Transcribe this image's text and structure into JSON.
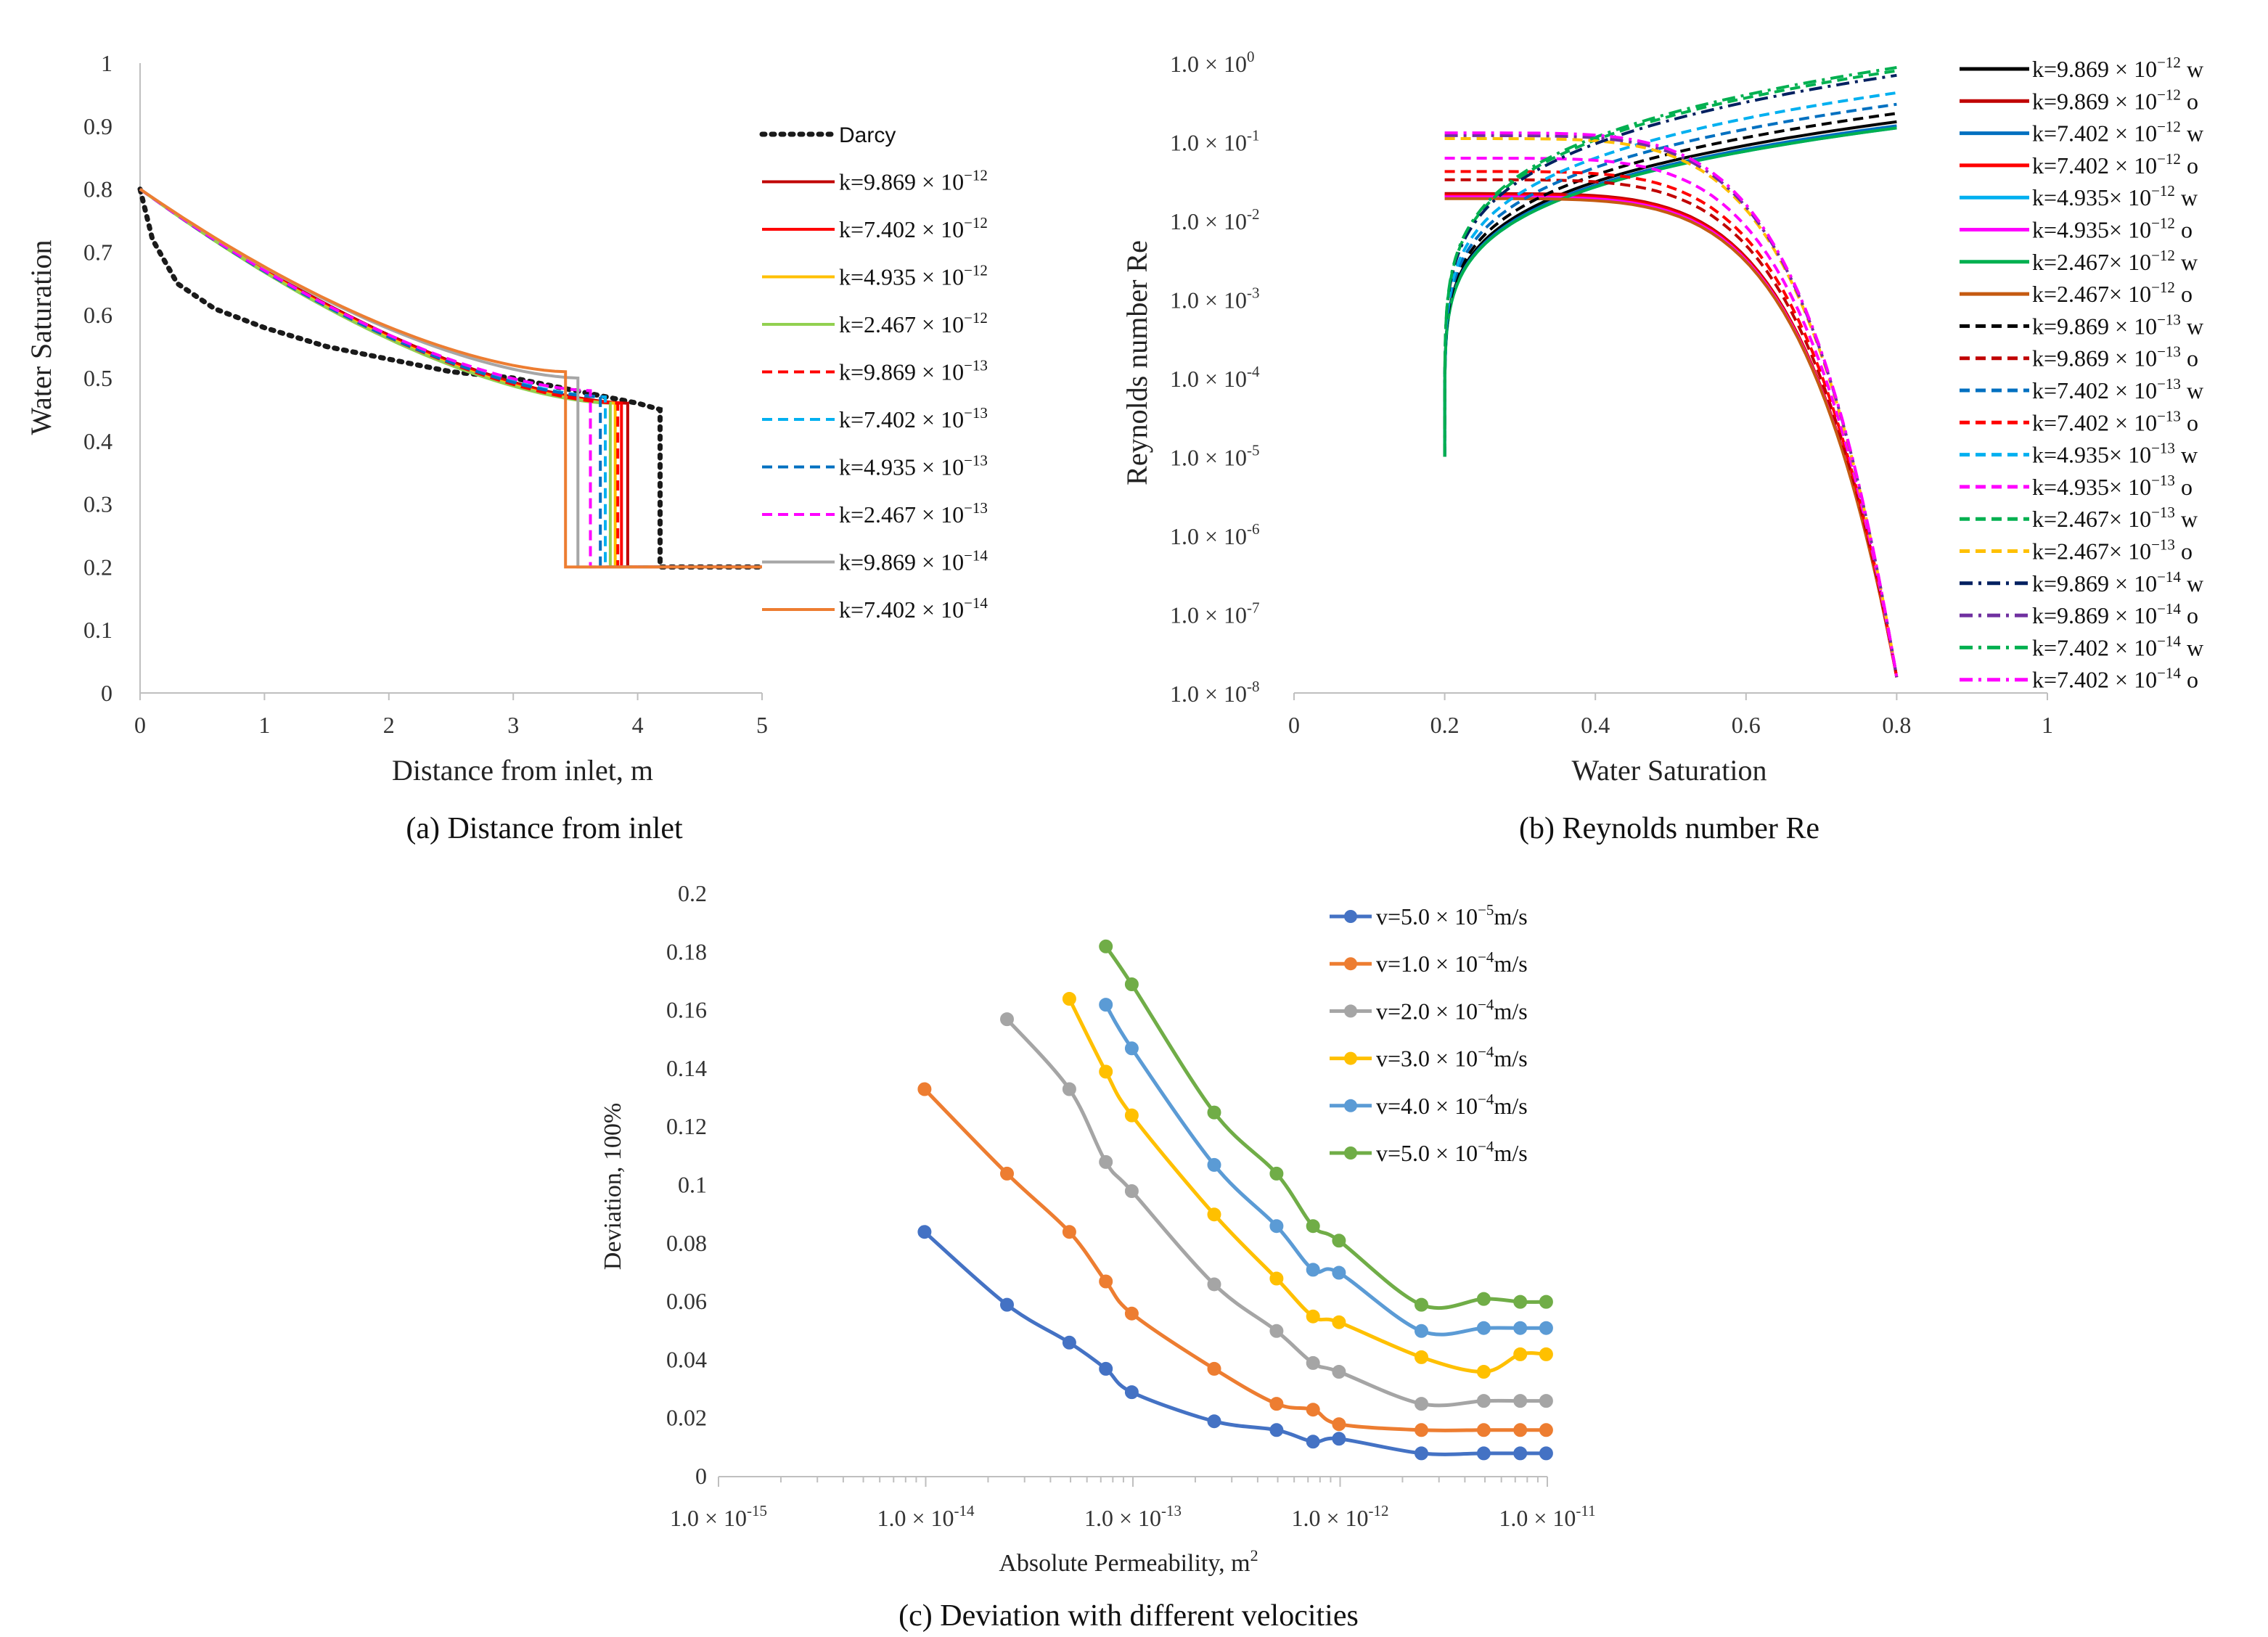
{
  "chart_data": [
    {
      "type": "line",
      "caption": "(a) Distance from inlet",
      "xlabel": "Distance from inlet, m",
      "ylabel": "Water Saturation",
      "xlim": [
        0,
        5
      ],
      "ylim": [
        0,
        1
      ],
      "xticks": [
        "0",
        "1",
        "2",
        "3",
        "4",
        "5"
      ],
      "yticks": [
        "0",
        "0.1",
        "0.2",
        "0.3",
        "0.4",
        "0.5",
        "0.6",
        "0.7",
        "0.8",
        "0.9",
        "1"
      ],
      "grid": false,
      "legend_position": "right",
      "series": [
        {
          "name": "Darcy",
          "label": {
            "pre": "Darcy",
            "sup": ""
          },
          "color": "#1a1a1a",
          "dash": "dotted",
          "front": 4.18,
          "sw_front": 0.45,
          "x": [
            0,
            0.1,
            0.3,
            0.6,
            1.0,
            1.5,
            2.0,
            2.5,
            3.0,
            3.5,
            4.0,
            4.18,
            4.18,
            5.0
          ],
          "y": [
            0.8,
            0.72,
            0.65,
            0.61,
            0.58,
            0.55,
            0.53,
            0.51,
            0.5,
            0.48,
            0.46,
            0.45,
            0.2,
            0.2
          ]
        },
        {
          "name": "k=9.869×10⁻¹²",
          "label": {
            "pre": "k=9.869 × 10",
            "sup": "−12"
          },
          "color": "#c00000",
          "dash": "solid",
          "front": 3.92,
          "sw_front": 0.46
        },
        {
          "name": "k=7.402×10⁻¹²",
          "label": {
            "pre": "k=7.402 × 10",
            "sup": "−12"
          },
          "color": "#ff0000",
          "dash": "solid",
          "front": 3.87,
          "sw_front": 0.46
        },
        {
          "name": "k=4.935×10⁻¹²",
          "label": {
            "pre": "k=4.935 × 10",
            "sup": "−12"
          },
          "color": "#ffc000",
          "dash": "solid",
          "front": 3.82,
          "sw_front": 0.46
        },
        {
          "name": "k=2.467×10⁻¹²",
          "label": {
            "pre": "k=2.467 × 10",
            "sup": "−12"
          },
          "color": "#92d050",
          "dash": "solid",
          "front": 3.78,
          "sw_front": 0.46
        },
        {
          "name": "k=9.869×10⁻¹³",
          "label": {
            "pre": "k=9.869 × 10",
            "sup": "−13"
          },
          "color": "#ff0000",
          "dash": "dashed",
          "front": 3.84,
          "sw_front": 0.46
        },
        {
          "name": "k=7.402×10⁻¹³",
          "label": {
            "pre": "k=7.402 × 10",
            "sup": "−13"
          },
          "color": "#00b0f0",
          "dash": "dashed",
          "front": 3.74,
          "sw_front": 0.47
        },
        {
          "name": "k=4.935×10⁻¹³",
          "label": {
            "pre": "k=4.935 × 10",
            "sup": "−13"
          },
          "color": "#0070c0",
          "dash": "dashed",
          "front": 3.7,
          "sw_front": 0.47
        },
        {
          "name": "k=2.467×10⁻¹³",
          "label": {
            "pre": "k=2.467 × 10",
            "sup": "−13"
          },
          "color": "#ff00ff",
          "dash": "dashed",
          "front": 3.62,
          "sw_front": 0.48
        },
        {
          "name": "k=9.869×10⁻¹⁴",
          "label": {
            "pre": "k=9.869 × 10",
            "sup": "−14"
          },
          "color": "#a6a6a6",
          "dash": "solid",
          "front": 3.52,
          "sw_front": 0.5
        },
        {
          "name": "k=7.402×10⁻¹⁴",
          "label": {
            "pre": "k=7.402 × 10",
            "sup": "−14"
          },
          "color": "#ed7d31",
          "dash": "solid",
          "front": 3.42,
          "sw_front": 0.51
        }
      ]
    },
    {
      "type": "line",
      "caption": "(b) Reynolds number Re",
      "xlabel": "Water Saturation",
      "ylabel": "Reynolds number Re",
      "xlim": [
        0,
        1
      ],
      "ylim_log10": [
        -8,
        0
      ],
      "yscale": "log",
      "xticks": [
        "0",
        "0.2",
        "0.4",
        "0.6",
        "0.8",
        "1"
      ],
      "yticks": [
        {
          "exp": 0,
          "pre": "1.0 × 10",
          "sup": "0"
        },
        {
          "exp": -1,
          "pre": "1.0 × 10",
          "sup": "-1"
        },
        {
          "exp": -2,
          "pre": "1.0 × 10",
          "sup": "-2"
        },
        {
          "exp": -3,
          "pre": "1.0 × 10",
          "sup": "-3"
        },
        {
          "exp": -4,
          "pre": "1.0 × 10",
          "sup": "-4"
        },
        {
          "exp": -5,
          "pre": "1.0 × 10",
          "sup": "-5"
        },
        {
          "exp": -6,
          "pre": "1.0 × 10",
          "sup": "-6"
        },
        {
          "exp": -7,
          "pre": "1.0 × 10",
          "sup": "-7"
        },
        {
          "exp": -8,
          "pre": "1.0 × 10",
          "sup": "-8"
        }
      ],
      "grid": false,
      "legend_position": "right",
      "series": [
        {
          "name": "k=9.869×10⁻¹² w",
          "label": {
            "pre": "k=9.869 × 10",
            "sup": "−12",
            "post": " w"
          },
          "color": "#000000",
          "dash": "solid",
          "phase": "w",
          "re_max": 0.18
        },
        {
          "name": "k=9.869×10⁻¹² o",
          "label": {
            "pre": "k=9.869 × 10",
            "sup": "−12",
            "post": " o"
          },
          "color": "#c00000",
          "dash": "solid",
          "phase": "o",
          "re_max": 0.022
        },
        {
          "name": "k=7.402×10⁻¹² w",
          "label": {
            "pre": "k=7.402 × 10",
            "sup": "−12",
            "post": " w"
          },
          "color": "#0070c0",
          "dash": "solid",
          "phase": "w",
          "re_max": 0.16
        },
        {
          "name": "k=7.402×10⁻¹² o",
          "label": {
            "pre": "k=7.402 × 10",
            "sup": "−12",
            "post": " o"
          },
          "color": "#ff0000",
          "dash": "solid",
          "phase": "o",
          "re_max": 0.021
        },
        {
          "name": "k=4.935×10⁻¹² w",
          "label": {
            "pre": "k=4.935× 10",
            "sup": "−12",
            "post": " w"
          },
          "color": "#00b0f0",
          "dash": "solid",
          "phase": "w",
          "re_max": 0.15
        },
        {
          "name": "k=4.935×10⁻¹² o",
          "label": {
            "pre": "k=4.935× 10",
            "sup": "−12",
            "post": " o"
          },
          "color": "#ff00ff",
          "dash": "solid",
          "phase": "o",
          "re_max": 0.02
        },
        {
          "name": "k=2.467×10⁻¹² w",
          "label": {
            "pre": "k=2.467× 10",
            "sup": "−12",
            "post": " w"
          },
          "color": "#00b050",
          "dash": "solid",
          "phase": "w",
          "re_max": 0.15
        },
        {
          "name": "k=2.467×10⁻¹² o",
          "label": {
            "pre": "k=2.467× 10",
            "sup": "−12",
            "post": " o"
          },
          "color": "#c55a11",
          "dash": "solid",
          "phase": "o",
          "re_max": 0.019
        },
        {
          "name": "k=9.869×10⁻¹³ w",
          "label": {
            "pre": "k=9.869 × 10",
            "sup": "−13",
            "post": " w"
          },
          "color": "#000000",
          "dash": "dashed",
          "phase": "w",
          "re_max": 0.23
        },
        {
          "name": "k=9.869×10⁻¹³ o",
          "label": {
            "pre": "k=9.869 × 10",
            "sup": "−13",
            "post": " o"
          },
          "color": "#c00000",
          "dash": "dashed",
          "phase": "o",
          "re_max": 0.033
        },
        {
          "name": "k=7.402×10⁻¹³ w",
          "label": {
            "pre": "k=7.402 × 10",
            "sup": "−13",
            "post": " w"
          },
          "color": "#0070c0",
          "dash": "dashed",
          "phase": "w",
          "re_max": 0.3
        },
        {
          "name": "k=7.402×10⁻¹³ o",
          "label": {
            "pre": "k=7.402 × 10",
            "sup": "−13",
            "post": " o"
          },
          "color": "#ff0000",
          "dash": "dashed",
          "phase": "o",
          "re_max": 0.042
        },
        {
          "name": "k=4.935×10⁻¹³ w",
          "label": {
            "pre": "k=4.935× 10",
            "sup": "−13",
            "post": " w"
          },
          "color": "#00b0f0",
          "dash": "dashed",
          "phase": "w",
          "re_max": 0.42
        },
        {
          "name": "k=4.935×10⁻¹³ o",
          "label": {
            "pre": "k=4.935× 10",
            "sup": "−13",
            "post": " o"
          },
          "color": "#ff00ff",
          "dash": "dashed",
          "phase": "o",
          "re_max": 0.062
        },
        {
          "name": "k=2.467×10⁻¹³ w",
          "label": {
            "pre": "k=2.467× 10",
            "sup": "−13",
            "post": " w"
          },
          "color": "#00b050",
          "dash": "dashed",
          "phase": "w",
          "re_max": 0.8
        },
        {
          "name": "k=2.467×10⁻¹³ o",
          "label": {
            "pre": "k=2.467× 10",
            "sup": "−13",
            "post": " o"
          },
          "color": "#ffc000",
          "dash": "dashed",
          "phase": "o",
          "re_max": 0.11
        },
        {
          "name": "k=9.869×10⁻¹⁴ w",
          "label": {
            "pre": "k=9.869 × 10",
            "sup": "−14",
            "post": " w"
          },
          "color": "#002060",
          "dash": "dashdot",
          "phase": "w",
          "re_max": 0.7
        },
        {
          "name": "k=9.869×10⁻¹⁴ o",
          "label": {
            "pre": "k=9.869 × 10",
            "sup": "−14",
            "post": " o"
          },
          "color": "#7030a0",
          "dash": "dashdot",
          "phase": "o",
          "re_max": 0.12
        },
        {
          "name": "k=7.402×10⁻¹⁴ w",
          "label": {
            "pre": "k=7.402 × 10",
            "sup": "−14",
            "post": " w"
          },
          "color": "#00b050",
          "dash": "dashdot",
          "phase": "w",
          "re_max": 0.88
        },
        {
          "name": "k=7.402×10⁻¹⁴ o",
          "label": {
            "pre": "k=7.402 × 10",
            "sup": "−14",
            "post": " o"
          },
          "color": "#ff00ff",
          "dash": "dashdot",
          "phase": "o",
          "re_max": 0.13
        }
      ]
    },
    {
      "type": "line",
      "caption": "(c) Deviation with different velocities",
      "xlabel": "Absolute Permeability, m",
      "xlabel_sup": "2",
      "ylabel": "Deviation, 100%",
      "xscale": "log",
      "xlim_log10": [
        -15,
        -11
      ],
      "ylim": [
        0,
        0.2
      ],
      "xticks": [
        {
          "exp": -15,
          "pre": "1.0 × 10",
          "sup": "-15"
        },
        {
          "exp": -14,
          "pre": "1.0 × 10",
          "sup": "-14"
        },
        {
          "exp": -13,
          "pre": "1.0 × 10",
          "sup": "-13"
        },
        {
          "exp": -12,
          "pre": "1.0 × 10",
          "sup": "-12"
        },
        {
          "exp": -11,
          "pre": "1.0 × 10",
          "sup": "-11"
        }
      ],
      "yticks": [
        "0",
        "0.02",
        "0.04",
        "0.06",
        "0.08",
        "0.1",
        "0.12",
        "0.14",
        "0.16",
        "0.18",
        "0.2"
      ],
      "grid": false,
      "legend_position": "top-right",
      "x": [
        9.869e-15,
        2.467e-14,
        4.935e-14,
        7.402e-14,
        9.869e-14,
        2.467e-13,
        4.935e-13,
        7.402e-13,
        9.869e-13,
        2.467e-12,
        4.935e-12,
        7.402e-12,
        9.869e-12
      ],
      "series": [
        {
          "name": "v=5.0×10⁻⁵m/s",
          "label": {
            "pre": "v=5.0 × 10",
            "sup": "−5",
            "post": "m/s"
          },
          "color": "#4472c4",
          "x": [
            9.869e-15,
            2.467e-14,
            4.935e-14,
            7.402e-14,
            9.869e-14,
            2.467e-13,
            4.935e-13,
            7.402e-13,
            9.869e-13,
            2.467e-12,
            4.935e-12,
            7.402e-12,
            9.869e-12
          ],
          "values": [
            0.084,
            0.059,
            0.046,
            0.037,
            0.029,
            0.019,
            0.016,
            0.012,
            0.013,
            0.008,
            0.008,
            0.008,
            0.008
          ]
        },
        {
          "name": "v=1.0×10⁻⁴m/s",
          "label": {
            "pre": "v=1.0 × 10",
            "sup": "−4",
            "post": "m/s"
          },
          "color": "#ed7d31",
          "x": [
            9.869e-15,
            2.467e-14,
            4.935e-14,
            7.402e-14,
            9.869e-14,
            2.467e-13,
            4.935e-13,
            7.402e-13,
            9.869e-13,
            2.467e-12,
            4.935e-12,
            7.402e-12,
            9.869e-12
          ],
          "values": [
            0.133,
            0.104,
            0.084,
            0.067,
            0.056,
            0.037,
            0.025,
            0.023,
            0.018,
            0.016,
            0.016,
            0.016,
            0.016
          ]
        },
        {
          "name": "v=2.0×10⁻⁴m/s",
          "label": {
            "pre": "v=2.0 × 10",
            "sup": "−4",
            "post": "m/s"
          },
          "color": "#a5a5a5",
          "x": [
            2.467e-14,
            4.935e-14,
            7.402e-14,
            9.869e-14,
            2.467e-13,
            4.935e-13,
            7.402e-13,
            9.869e-13,
            2.467e-12,
            4.935e-12,
            7.402e-12,
            9.869e-12
          ],
          "values": [
            0.157,
            0.133,
            0.108,
            0.098,
            0.066,
            0.05,
            0.039,
            0.036,
            0.025,
            0.026,
            0.026,
            0.026
          ]
        },
        {
          "name": "v=3.0×10⁻⁴m/s",
          "label": {
            "pre": "v=3.0 × 10",
            "sup": "−4",
            "post": "m/s"
          },
          "color": "#ffc000",
          "x": [
            4.935e-14,
            7.402e-14,
            9.869e-14,
            2.467e-13,
            4.935e-13,
            7.402e-13,
            9.869e-13,
            2.467e-12,
            4.935e-12,
            7.402e-12,
            9.869e-12
          ],
          "values": [
            0.164,
            0.139,
            0.124,
            0.09,
            0.068,
            0.055,
            0.053,
            0.041,
            0.036,
            0.042,
            0.042
          ]
        },
        {
          "name": "v=4.0×10⁻⁴m/s",
          "label": {
            "pre": "v=4.0 × 10",
            "sup": "−4",
            "post": "m/s"
          },
          "color": "#5b9bd5",
          "x": [
            7.402e-14,
            9.869e-14,
            2.467e-13,
            4.935e-13,
            7.402e-13,
            9.869e-13,
            2.467e-12,
            4.935e-12,
            7.402e-12,
            9.869e-12
          ],
          "values": [
            0.162,
            0.147,
            0.107,
            0.086,
            0.071,
            0.07,
            0.05,
            0.051,
            0.051,
            0.051
          ]
        },
        {
          "name": "v=5.0×10⁻⁴m/s",
          "label": {
            "pre": "v=5.0 × 10",
            "sup": "−4",
            "post": "m/s"
          },
          "color": "#70ad47",
          "x": [
            7.402e-14,
            9.869e-14,
            2.467e-13,
            4.935e-13,
            7.402e-13,
            9.869e-13,
            2.467e-12,
            4.935e-12,
            7.402e-12,
            9.869e-12
          ],
          "values": [
            0.182,
            0.169,
            0.125,
            0.104,
            0.086,
            0.081,
            0.059,
            0.061,
            0.06,
            0.06
          ]
        }
      ]
    }
  ]
}
